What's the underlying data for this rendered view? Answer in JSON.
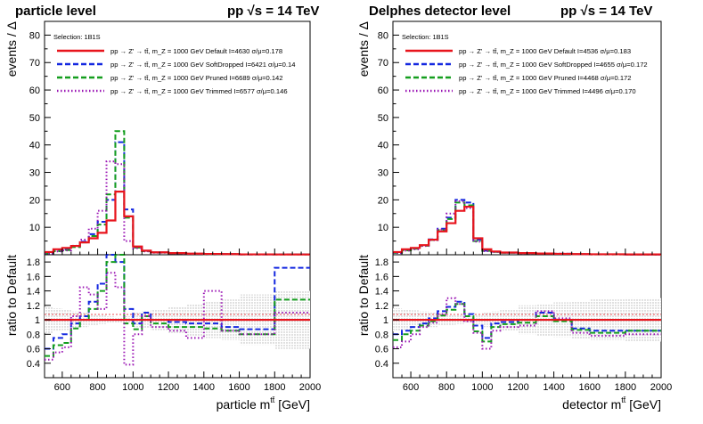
{
  "chart_data": [
    {
      "type": "line",
      "panel_title": "particle level",
      "energy_label": "pp  √s = 14 TeV",
      "selection": "Selection: 1B1S",
      "xlabel": "particle m",
      "xlabel_super": "tt̄",
      "xlabel_unit": " [GeV]",
      "ylabel_top": "events / Δ",
      "ylabel_ratio": "ratio to Default",
      "xlim": [
        500,
        2000
      ],
      "ylim_top": [
        0,
        85
      ],
      "ylim_ratio": [
        0.2,
        1.9
      ],
      "x_ticks": [
        600,
        800,
        1000,
        1200,
        1400,
        1600,
        1800,
        2000
      ],
      "y_ticks_top": [
        10,
        20,
        30,
        40,
        50,
        60,
        70,
        80
      ],
      "y_ticks_ratio": [
        0.4,
        0.6,
        0.8,
        1,
        1.2,
        1.4,
        1.6,
        1.8
      ],
      "bin_edges": [
        500,
        550,
        600,
        650,
        700,
        750,
        800,
        850,
        900,
        950,
        1000,
        1050,
        1100,
        1200,
        1300,
        1400,
        1500,
        1600,
        1800,
        2000
      ],
      "series": [
        {
          "name": "pp → Z' → tt̄, m_Z = 1000 GeV Default I=4630 σ/μ=0.178",
          "color": "#e8141c",
          "style": "solid",
          "values": [
            1.0,
            2.0,
            2.5,
            3.2,
            4.5,
            6.0,
            8.0,
            12.5,
            23.0,
            14.0,
            3.0,
            1.5,
            0.9,
            0.6,
            0.4,
            0.3,
            0.25,
            0.15,
            0.1
          ],
          "ratio": [
            1,
            1,
            1,
            1,
            1,
            1,
            1,
            1,
            1,
            1,
            1,
            1,
            1,
            1,
            1,
            1,
            1,
            1,
            1
          ]
        },
        {
          "name": "pp → Z' → tt̄, m_Z = 1000 GeV SoftDropped I=6421 σ/μ=0.14",
          "color": "#1428e0",
          "style": "dashed",
          "values": [
            0.6,
            1.5,
            2.0,
            3.0,
            4.8,
            7.5,
            12.0,
            20.0,
            41.0,
            16.5,
            2.8,
            1.4,
            0.85,
            0.55,
            0.38,
            0.29,
            0.24,
            0.14,
            0.17
          ],
          "ratio": [
            0.6,
            0.75,
            0.8,
            0.95,
            1.05,
            1.25,
            1.5,
            1.9,
            1.8,
            1.15,
            0.95,
            1.1,
            1.0,
            0.97,
            0.95,
            0.95,
            0.9,
            0.87,
            1.72
          ]
        },
        {
          "name": "pp → Z' → tt̄, m_Z = 1000 GeV Pruned I=6689 σ/μ=0.142",
          "color": "#149e1e",
          "style": "dashed",
          "values": [
            0.5,
            1.3,
            1.7,
            2.8,
            4.5,
            6.8,
            11.0,
            22.0,
            45.0,
            13.5,
            2.6,
            1.3,
            0.8,
            0.52,
            0.36,
            0.26,
            0.22,
            0.12,
            0.13
          ],
          "ratio": [
            0.5,
            0.65,
            0.68,
            0.88,
            1.0,
            1.15,
            1.4,
            1.8,
            1.95,
            0.95,
            0.87,
            1.05,
            0.95,
            0.9,
            0.9,
            0.88,
            0.85,
            0.8,
            1.28
          ]
        },
        {
          "name": "pp → Z' → tt̄, m_Z = 1000 GeV Trimmed I=6577 σ/μ=0.146",
          "color": "#9a14b4",
          "style": "dotted",
          "values": [
            0.45,
            1.2,
            1.6,
            3.3,
            5.5,
            9.5,
            16.0,
            34.0,
            33.0,
            5.0,
            2.4,
            1.2,
            0.75,
            0.5,
            0.32,
            0.33,
            0.22,
            0.12,
            0.12
          ],
          "ratio": [
            0.45,
            0.55,
            0.62,
            1.05,
            1.45,
            1.35,
            1.15,
            1.65,
            1.45,
            0.38,
            0.8,
            1.05,
            0.9,
            0.85,
            0.75,
            1.4,
            0.85,
            0.8,
            1.1
          ]
        }
      ],
      "band": {
        "label": "uncertainty band",
        "low": [
          0.82,
          0.84,
          0.86,
          0.88,
          0.9,
          0.92,
          0.94,
          0.95,
          0.96,
          0.95,
          0.9,
          0.88,
          0.86,
          0.82,
          0.78,
          0.75,
          0.72,
          0.65,
          0.6
        ],
        "high": [
          1.18,
          1.16,
          1.14,
          1.12,
          1.1,
          1.08,
          1.06,
          1.05,
          1.04,
          1.05,
          1.1,
          1.12,
          1.14,
          1.18,
          1.22,
          1.25,
          1.28,
          1.35,
          1.4
        ]
      }
    },
    {
      "type": "line",
      "panel_title": "Delphes detector level",
      "energy_label": "pp  √s = 14 TeV",
      "selection": "Selection: 1B1S",
      "xlabel": "detector m",
      "xlabel_super": "tt̄",
      "xlabel_unit": " [GeV]",
      "ylabel_top": "events / Δ",
      "ylabel_ratio": "ratio to Default",
      "xlim": [
        500,
        2000
      ],
      "ylim_top": [
        0,
        85
      ],
      "ylim_ratio": [
        0.2,
        1.9
      ],
      "x_ticks": [
        600,
        800,
        1000,
        1200,
        1400,
        1600,
        1800,
        2000
      ],
      "y_ticks_top": [
        10,
        20,
        30,
        40,
        50,
        60,
        70,
        80
      ],
      "y_ticks_ratio": [
        0.4,
        0.6,
        0.8,
        1,
        1.2,
        1.4,
        1.6,
        1.8
      ],
      "bin_edges": [
        500,
        550,
        600,
        650,
        700,
        750,
        800,
        850,
        900,
        950,
        1000,
        1050,
        1100,
        1200,
        1300,
        1400,
        1500,
        1600,
        1800,
        2000
      ],
      "series": [
        {
          "name": "pp → Z' → tt̄, m_Z = 1000 GeV Default I=4536 σ/μ=0.183",
          "color": "#e8141c",
          "style": "solid",
          "values": [
            1.0,
            2.0,
            2.5,
            3.5,
            5.5,
            8.5,
            11.5,
            16.0,
            17.5,
            6.0,
            2.0,
            1.2,
            0.8,
            0.6,
            0.45,
            0.35,
            0.25,
            0.18,
            0.12
          ],
          "ratio": [
            1,
            1,
            1,
            1,
            1,
            1,
            1,
            1,
            1,
            1,
            1,
            1,
            1,
            1,
            1,
            1,
            1,
            1,
            1
          ]
        },
        {
          "name": "pp → Z' → tt̄, m_Z = 1000 GeV SoftDropped I=4655 σ/μ=0.172",
          "color": "#1428e0",
          "style": "dashed",
          "values": [
            0.8,
            1.7,
            2.3,
            3.4,
            5.6,
            9.5,
            13.5,
            20.0,
            19.0,
            5.5,
            1.5,
            1.1,
            0.78,
            0.6,
            0.49,
            0.35,
            0.22,
            0.15,
            0.1
          ],
          "ratio": [
            0.8,
            0.85,
            0.9,
            0.95,
            1.02,
            1.12,
            1.18,
            1.25,
            1.08,
            0.92,
            0.75,
            0.95,
            0.97,
            1.0,
            1.1,
            1.0,
            0.88,
            0.85,
            0.85
          ]
        },
        {
          "name": "pp → Z' → tt̄, m_Z = 1000 GeV Pruned I=4468 σ/μ=0.172",
          "color": "#149e1e",
          "style": "dashed",
          "values": [
            0.7,
            1.6,
            2.2,
            3.3,
            5.4,
            9.0,
            13.0,
            19.0,
            18.0,
            5.0,
            1.4,
            1.05,
            0.75,
            0.57,
            0.47,
            0.34,
            0.21,
            0.14,
            0.1
          ],
          "ratio": [
            0.72,
            0.8,
            0.85,
            0.92,
            0.98,
            1.06,
            1.14,
            1.22,
            1.05,
            0.84,
            0.7,
            0.9,
            0.94,
            0.96,
            1.05,
            0.98,
            0.86,
            0.82,
            0.85
          ]
        },
        {
          "name": "pp → Z' → tt̄, m_Z = 1000 GeV Trimmed I=4496 σ/μ=0.170",
          "color": "#9a14b4",
          "style": "dotted",
          "values": [
            0.6,
            1.5,
            2.0,
            3.2,
            5.3,
            9.2,
            15.0,
            19.5,
            17.0,
            4.8,
            1.3,
            1.0,
            0.72,
            0.55,
            0.5,
            0.36,
            0.2,
            0.13,
            0.09
          ],
          "ratio": [
            0.62,
            0.7,
            0.8,
            0.9,
            0.96,
            1.08,
            1.3,
            1.22,
            0.98,
            0.82,
            0.6,
            0.85,
            0.9,
            0.92,
            1.12,
            1.02,
            0.82,
            0.78,
            0.8
          ]
        }
      ],
      "band": {
        "label": "uncertainty band",
        "low": [
          0.84,
          0.86,
          0.87,
          0.88,
          0.9,
          0.92,
          0.93,
          0.94,
          0.95,
          0.94,
          0.9,
          0.88,
          0.85,
          0.8,
          0.78,
          0.76,
          0.74,
          0.72,
          0.7
        ],
        "high": [
          1.16,
          1.14,
          1.13,
          1.12,
          1.1,
          1.08,
          1.07,
          1.06,
          1.05,
          1.06,
          1.1,
          1.12,
          1.15,
          1.2,
          1.22,
          1.24,
          1.26,
          1.28,
          1.3
        ]
      }
    }
  ]
}
